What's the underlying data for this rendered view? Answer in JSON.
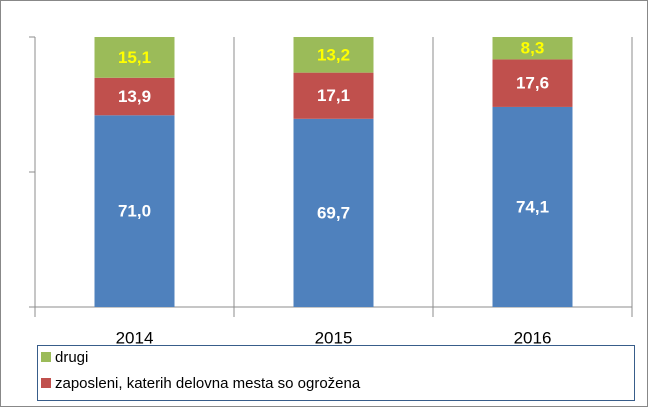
{
  "chart_data": {
    "type": "stacked_bar",
    "categories": [
      "2014",
      "2015",
      "2016"
    ],
    "series": [
      {
        "color": "#4f81bd",
        "label_color": "#ffffff",
        "values": [
          71.0,
          69.7,
          74.1
        ],
        "value_labels": [
          "71,0",
          "69,7",
          "74,1"
        ]
      },
      {
        "name": "zaposleni, katerih delovna mesta so ogrožena",
        "color": "#c0504d",
        "label_color": "#ffffff",
        "values": [
          13.9,
          17.1,
          17.6
        ],
        "value_labels": [
          "13,9",
          "17,1",
          "17,6"
        ]
      },
      {
        "name": "drugi",
        "color": "#9bbb59",
        "label_color": "#ffff00",
        "values": [
          15.1,
          13.2,
          8.3
        ],
        "value_labels": [
          "15,1",
          "13,2",
          "8,3"
        ]
      }
    ],
    "ylim": [
      0,
      100
    ],
    "yticks": [
      0,
      50,
      100
    ],
    "grid": true
  }
}
